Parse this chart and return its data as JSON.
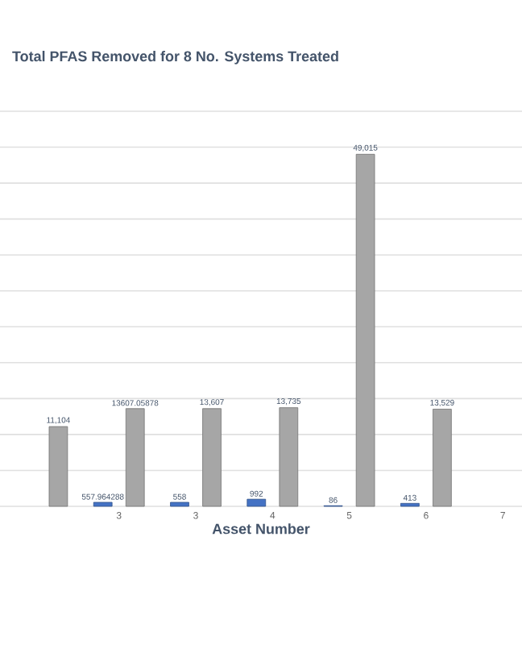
{
  "chart_data": {
    "type": "bar",
    "title": "Total PFAS Removed for 8 No. Systems Treated",
    "xlabel": "Asset Number",
    "categories": [
      null,
      "3",
      "3",
      "4",
      "5",
      "6",
      "7"
    ],
    "series": [
      {
        "color": "#4472c4",
        "values": [
          null,
          557.964288,
          558,
          992,
          86,
          413,
          null
        ],
        "value_labels": [
          null,
          "557.964288",
          "558",
          "992",
          "86",
          "413",
          null
        ]
      },
      {
        "color": "#a6a6a6",
        "values": [
          11104,
          13607.05878,
          13607,
          13735,
          49015,
          13529,
          null
        ],
        "value_labels": [
          "11,104",
          "13607.05878",
          "13,607",
          "13,735",
          "49,015",
          "13,529",
          null
        ]
      }
    ],
    "ylim": [
      0,
      55000
    ],
    "yticks": [
      {
        "value": 0,
        "label": null
      },
      {
        "value": 5000,
        "label": null
      },
      {
        "value": 10000,
        "label": null
      },
      {
        "value": 15000,
        "label": null
      },
      {
        "value": 20000,
        "label": null
      },
      {
        "value": 25000,
        "label": null
      },
      {
        "value": 30000,
        "label": null
      },
      {
        "value": 35000,
        "label": null
      },
      {
        "value": 40000,
        "label": null
      },
      {
        "value": 45000,
        "label": null
      },
      {
        "value": 50000,
        "label": null
      },
      {
        "value": 55000,
        "label": null
      }
    ],
    "grid": "y",
    "tick_labels": "x"
  }
}
